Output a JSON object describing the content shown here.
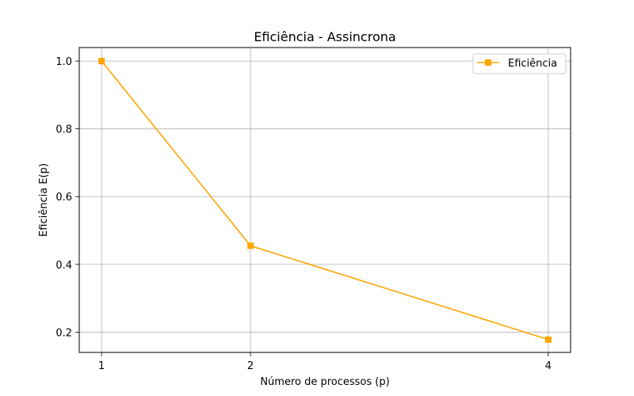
{
  "chart_data": {
    "type": "line",
    "title": "Eficiência - Assincrona",
    "xlabel": "Número de processos (p)",
    "ylabel": "Eficiência E(p)",
    "x": [
      1,
      2,
      4
    ],
    "x_ticks": [
      "1",
      "2",
      "4"
    ],
    "y_ticks": [
      "0.2",
      "0.4",
      "0.6",
      "0.8",
      "1.0"
    ],
    "xlim": [
      0.85,
      4.15
    ],
    "ylim": [
      0.14,
      1.04
    ],
    "grid": true,
    "legend_position": "top-right",
    "series": [
      {
        "name": "Eficiência",
        "values": [
          1.0,
          0.455,
          0.178
        ],
        "color": "#FFA500",
        "marker": "square"
      }
    ]
  }
}
